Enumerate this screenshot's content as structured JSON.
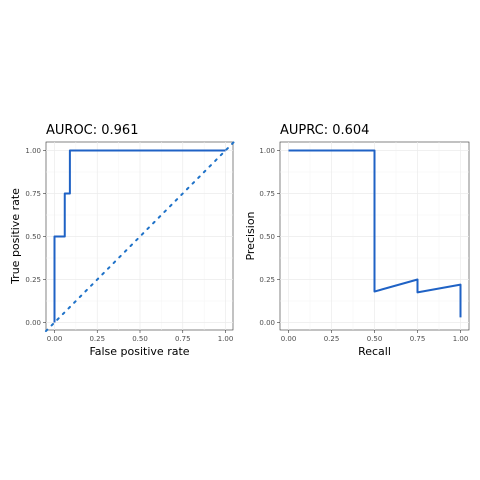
{
  "colors": {
    "curve": "#1f62c5",
    "reference": "#1f72c8"
  },
  "chart_data": [
    {
      "type": "line",
      "title": "AUROC: 0.961",
      "xlabel": "False positive rate",
      "ylabel": "True positive rate",
      "xlim": [
        0,
        1
      ],
      "ylim": [
        0,
        1
      ],
      "xticks": [
        "0.00",
        "0.25",
        "0.50",
        "0.75",
        "1.00"
      ],
      "yticks": [
        "0.00",
        "0.25",
        "0.50",
        "0.75",
        "1.00"
      ],
      "grid": true,
      "series": [
        {
          "x": [
            0,
            0,
            0.06,
            0.06,
            0.09,
            0.09,
            1
          ],
          "y": [
            0,
            0.5,
            0.5,
            0.75,
            0.75,
            1,
            1
          ]
        }
      ],
      "reference_line": {
        "x": [
          0,
          1
        ],
        "y": [
          0,
          1
        ]
      }
    },
    {
      "type": "line",
      "title": "AUPRC: 0.604",
      "xlabel": "Recall",
      "ylabel": "Precision",
      "xlim": [
        0,
        1
      ],
      "ylim": [
        0,
        1
      ],
      "xticks": [
        "0.00",
        "0.25",
        "0.50",
        "0.75",
        "1.00"
      ],
      "yticks": [
        "0.00",
        "0.25",
        "0.50",
        "0.75",
        "1.00"
      ],
      "grid": true,
      "series": [
        {
          "x": [
            0,
            0.5,
            0.5,
            0.75,
            0.75,
            1,
            1
          ],
          "y": [
            1,
            1,
            0.18,
            0.25,
            0.175,
            0.22,
            0.03
          ]
        }
      ]
    }
  ]
}
